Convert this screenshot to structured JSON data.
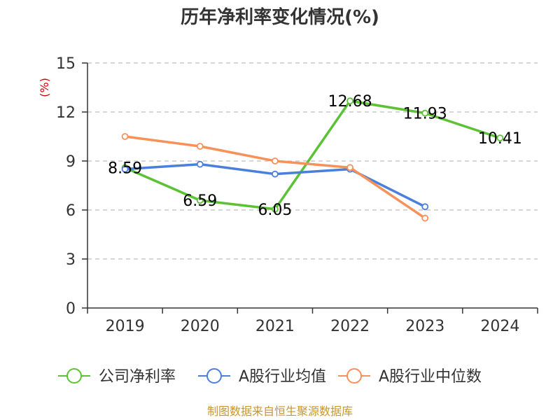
{
  "chart_data": {
    "type": "line",
    "title": "历年净利率变化情况(%)",
    "ylabel": "(%)",
    "xlabel": "",
    "categories": [
      "2019",
      "2020",
      "2021",
      "2022",
      "2023",
      "2024"
    ],
    "ylim": [
      0,
      15
    ],
    "yticks": [
      0,
      3,
      6,
      9,
      12,
      15
    ],
    "grid": true,
    "legend_position": "bottom",
    "series": [
      {
        "name": "公司净利率",
        "color": "#5bc236",
        "values": [
          8.59,
          6.59,
          6.05,
          12.68,
          11.93,
          10.41
        ],
        "labels": [
          "8.59",
          "6.59",
          "6.05",
          "12.68",
          "11.93",
          "10.41"
        ]
      },
      {
        "name": "A股行业均值",
        "color": "#4a7fdb",
        "values": [
          8.5,
          8.8,
          8.2,
          8.5,
          6.2,
          null
        ]
      },
      {
        "name": "A股行业中位数",
        "color": "#f7915a",
        "values": [
          10.5,
          9.9,
          9.0,
          8.6,
          5.5,
          null
        ]
      }
    ],
    "source": "制图数据来自恒生聚源数据库",
    "ylabel_color": "#d40000",
    "source_color": "#c8962e"
  }
}
